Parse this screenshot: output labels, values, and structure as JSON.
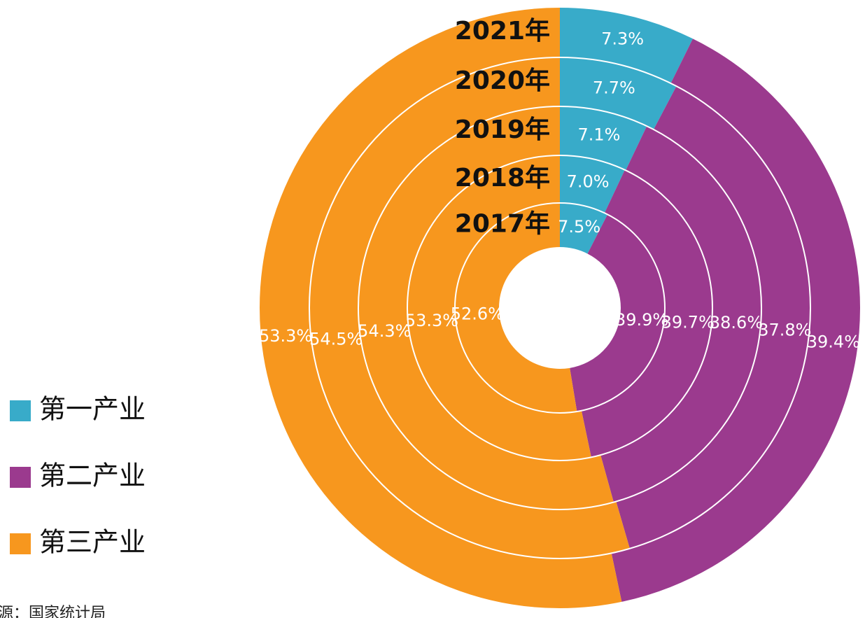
{
  "chart_data": {
    "type": "donut",
    "categories": [
      "第一产业",
      "第二产业",
      "第三产业"
    ],
    "colors": [
      "#38abc9",
      "#9b3a8e",
      "#f7971e"
    ],
    "series": [
      {
        "name": "2017年",
        "values": [
          7.5,
          39.9,
          52.6
        ],
        "value_labels": [
          "7.5%",
          "39.9%",
          "52.6%"
        ]
      },
      {
        "name": "2018年",
        "values": [
          7.0,
          39.7,
          53.3
        ],
        "value_labels": [
          "7.0%",
          "39.7%",
          "53.3%"
        ]
      },
      {
        "name": "2019年",
        "values": [
          7.1,
          38.6,
          54.3
        ],
        "value_labels": [
          "7.1%",
          "38.6%",
          "54.3%"
        ]
      },
      {
        "name": "2020年",
        "values": [
          7.7,
          37.8,
          54.5
        ],
        "value_labels": [
          "7.7%",
          "37.8%",
          "54.5%"
        ]
      },
      {
        "name": "2021年",
        "values": [
          7.3,
          39.4,
          53.3
        ],
        "value_labels": [
          "7.3%",
          "39.4%",
          "53.3%"
        ]
      }
    ],
    "source": "来源：国家统计局"
  }
}
